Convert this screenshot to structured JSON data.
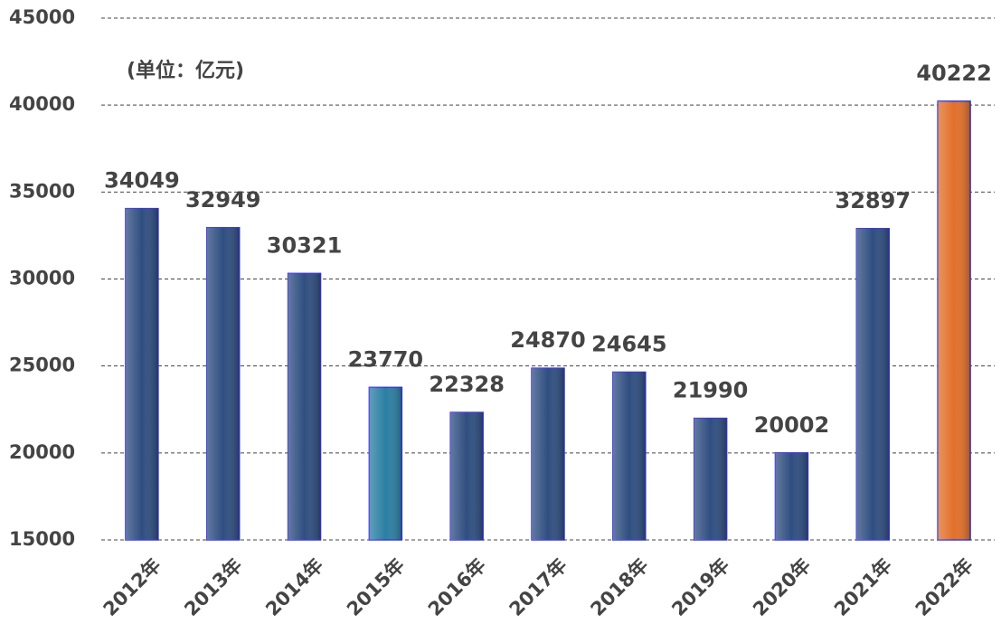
{
  "chart_data": {
    "type": "bar",
    "annotation": "(单位：亿元)",
    "categories": [
      "2012年",
      "2013年",
      "2014年",
      "2015年",
      "2016年",
      "2017年",
      "2018年",
      "2019年",
      "2020年",
      "2021年",
      "2022年"
    ],
    "values": [
      34049,
      32949,
      30321,
      23770,
      22328,
      24870,
      24645,
      21990,
      20002,
      32897,
      40222
    ],
    "colors": [
      "#2f4e80",
      "#2f4e80",
      "#2f4e80",
      "#2b7fa3",
      "#2f4e80",
      "#2f4e80",
      "#2f4e80",
      "#2f4e80",
      "#2f4e80",
      "#2f4e80",
      "#e2702a"
    ],
    "ylim": [
      15000,
      45000
    ],
    "yticks": [
      15000,
      20000,
      25000,
      30000,
      35000,
      40000,
      45000
    ],
    "grid": true
  }
}
